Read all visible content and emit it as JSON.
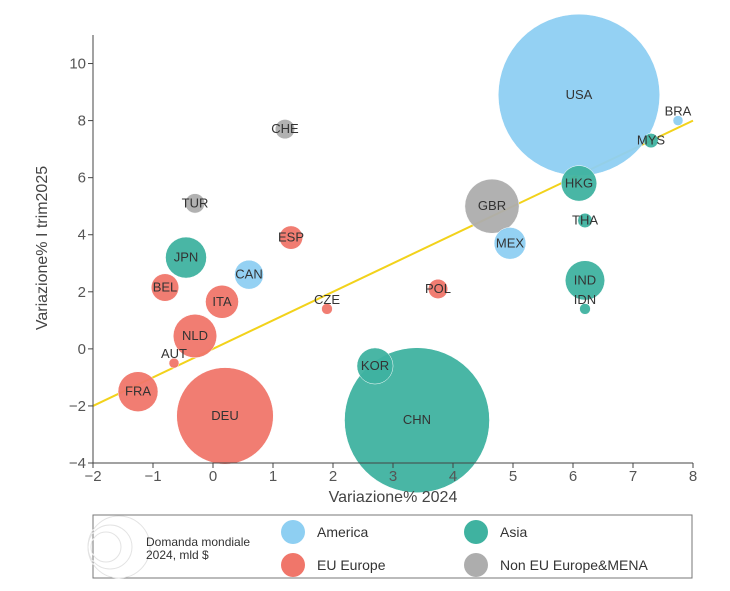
{
  "chart_data": {
    "type": "scatter",
    "xlabel": "Variazione% 2024",
    "ylabel": "Variazione% I trim2025",
    "xlim": [
      -2,
      8
    ],
    "ylim": [
      -4,
      11
    ],
    "xticks": [
      -2,
      -1,
      0,
      1,
      2,
      3,
      4,
      5,
      6,
      7,
      8
    ],
    "yticks": [
      -4,
      -2,
      0,
      2,
      4,
      6,
      8,
      10
    ],
    "grid": false,
    "trend_line": {
      "x": [
        -2,
        8
      ],
      "y": [
        -2,
        8
      ],
      "color": "#f2d21b"
    },
    "groups": [
      {
        "name": "America",
        "color": "#8ecff2"
      },
      {
        "name": "Asia",
        "color": "#3fb2a0"
      },
      {
        "name": "EU Europe",
        "color": "#f0766a"
      },
      {
        "name": "Non EU Europe&MENA",
        "color": "#adadad"
      }
    ],
    "size_legend": {
      "title": "Domanda mondiale",
      "subtitle": "2024, mld $"
    },
    "points": [
      {
        "label": "USA",
        "x": 6.1,
        "y": 8.9,
        "size": 3100,
        "group": "America"
      },
      {
        "label": "BRA",
        "x": 7.75,
        "y": 8.0,
        "size": 12,
        "group": "America"
      },
      {
        "label": "MEX",
        "x": 4.95,
        "y": 3.7,
        "size": 120,
        "group": "America"
      },
      {
        "label": "CAN",
        "x": 0.6,
        "y": 2.6,
        "size": 100,
        "group": "America"
      },
      {
        "label": "MYS",
        "x": 7.3,
        "y": 7.3,
        "size": 25,
        "group": "Asia"
      },
      {
        "label": "HKG",
        "x": 6.1,
        "y": 5.8,
        "size": 150,
        "group": "Asia"
      },
      {
        "label": "THA",
        "x": 6.2,
        "y": 4.5,
        "size": 25,
        "group": "Asia"
      },
      {
        "label": "IND",
        "x": 6.2,
        "y": 2.4,
        "size": 185,
        "group": "Asia"
      },
      {
        "label": "IDN",
        "x": 6.2,
        "y": 1.4,
        "size": 14,
        "group": "Asia"
      },
      {
        "label": "JPN",
        "x": -0.45,
        "y": 3.2,
        "size": 200,
        "group": "Asia"
      },
      {
        "label": "KOR",
        "x": 2.7,
        "y": -0.6,
        "size": 155,
        "group": "Asia"
      },
      {
        "label": "CHN",
        "x": 3.4,
        "y": -2.5,
        "size": 2500,
        "group": "Asia"
      },
      {
        "label": "ESP",
        "x": 1.3,
        "y": 3.9,
        "size": 65,
        "group": "EU Europe"
      },
      {
        "label": "BEL",
        "x": -0.8,
        "y": 2.15,
        "size": 90,
        "group": "EU Europe"
      },
      {
        "label": "ITA",
        "x": 0.15,
        "y": 1.65,
        "size": 130,
        "group": "EU Europe"
      },
      {
        "label": "NLD",
        "x": -0.3,
        "y": 0.45,
        "size": 225,
        "group": "EU Europe"
      },
      {
        "label": "POL",
        "x": 3.75,
        "y": 2.1,
        "size": 45,
        "group": "EU Europe"
      },
      {
        "label": "CZE",
        "x": 1.9,
        "y": 1.4,
        "size": 14,
        "group": "EU Europe"
      },
      {
        "label": "AUT",
        "x": -0.65,
        "y": -0.5,
        "size": 12,
        "group": "EU Europe"
      },
      {
        "label": "FRA",
        "x": -1.25,
        "y": -1.5,
        "size": 190,
        "group": "EU Europe"
      },
      {
        "label": "DEU",
        "x": 0.2,
        "y": -2.35,
        "size": 1110,
        "group": "EU Europe"
      },
      {
        "label": "CHE",
        "x": 1.2,
        "y": 7.7,
        "size": 45,
        "group": "Non EU Europe&MENA"
      },
      {
        "label": "TUR",
        "x": -0.3,
        "y": 5.1,
        "size": 45,
        "group": "Non EU Europe&MENA"
      },
      {
        "label": "GBR",
        "x": 4.65,
        "y": 5.0,
        "size": 350,
        "group": "Non EU Europe&MENA"
      }
    ]
  }
}
